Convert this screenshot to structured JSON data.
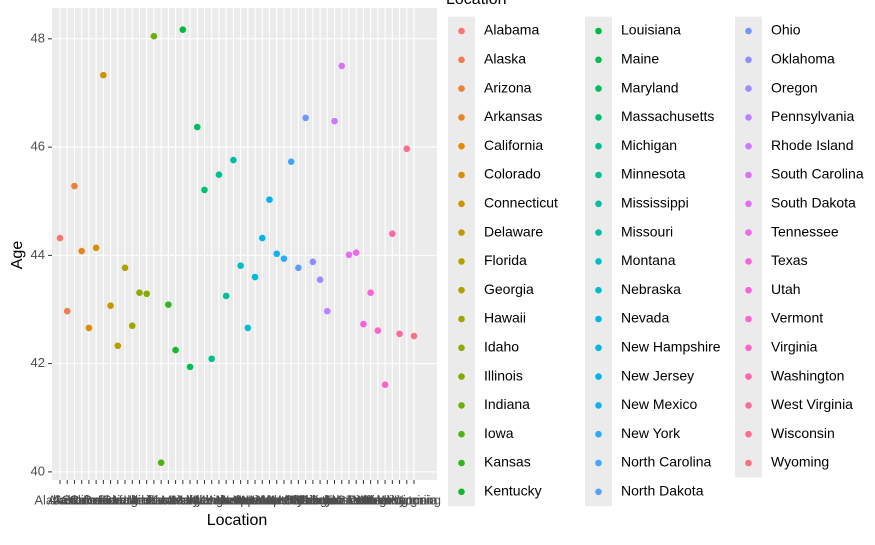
{
  "chart_data": {
    "type": "scatter",
    "x_label": "Location",
    "y_label": "Age",
    "legend_title": "Location",
    "categories": [
      "Alabama",
      "Alaska",
      "Arizona",
      "Arkansas",
      "California",
      "Colorado",
      "Connecticut",
      "Delaware",
      "Florida",
      "Georgia",
      "Hawaii",
      "Idaho",
      "Illinois",
      "Indiana",
      "Iowa",
      "Kansas",
      "Kentucky",
      "Louisiana",
      "Maine",
      "Maryland",
      "Massachusetts",
      "Michigan",
      "Minnesota",
      "Mississippi",
      "Missouri",
      "Montana",
      "Nebraska",
      "Nevada",
      "New Hampshire",
      "New Jersey",
      "New Mexico",
      "New York",
      "North Carolina",
      "North Dakota",
      "Ohio",
      "Oklahoma",
      "Oregon",
      "Pennsylvania",
      "Rhode Island",
      "South Carolina",
      "South Dakota",
      "Tennessee",
      "Texas",
      "Utah",
      "Vermont",
      "Virginia",
      "Washington",
      "West Virginia",
      "Wisconsin",
      "Wyoming"
    ],
    "values": [
      44.32,
      42.97,
      45.28,
      44.08,
      42.66,
      44.14,
      47.33,
      43.07,
      42.33,
      43.77,
      42.7,
      43.31,
      43.29,
      48.05,
      40.17,
      43.09,
      42.25,
      48.17,
      41.94,
      46.37,
      45.21,
      42.09,
      45.49,
      43.25,
      45.76,
      43.81,
      42.66,
      43.6,
      44.32,
      45.03,
      44.03,
      43.94,
      45.73,
      43.77,
      46.54,
      43.88,
      43.55,
      42.97,
      46.48,
      47.5,
      44.01,
      44.05,
      42.73,
      43.31,
      42.61,
      41.61,
      44.4,
      42.55,
      45.97,
      42.51
    ],
    "colors": [
      "#F8766D",
      "#F27B53",
      "#EC8139",
      "#E5861F",
      "#DF8B04",
      "#D69000",
      "#CD9400",
      "#C49900",
      "#BA9D00",
      "#AEA100",
      "#9FA500",
      "#91A800",
      "#83AC00",
      "#6DAF07",
      "#4FB214",
      "#32B522",
      "#14B82F",
      "#00BA3F",
      "#00BC51",
      "#00BD62",
      "#00BF73",
      "#00C08D",
      "#00C095",
      "#00BF9D",
      "#00BFA6",
      "#00BFC4",
      "#00BCCE",
      "#00BAD9",
      "#00B7E3",
      "#00B4EE",
      "#13AFF3",
      "#2BAAF6",
      "#42A5FA",
      "#599EFE",
      "#7197FF",
      "#8A90FF",
      "#A289FF",
      "#BB81FF",
      "#CD79FC",
      "#D874F6",
      "#E36EF0",
      "#EE68E9",
      "#F664E0",
      "#F864D8",
      "#FB64D1",
      "#FD64C9",
      "#FF65AD",
      "#FD689D",
      "#FB6D8E",
      "#F9727E"
    ],
    "ylim": [
      39.85,
      48.57
    ],
    "yticks": [
      40,
      42,
      44,
      46,
      48
    ],
    "grid": true,
    "legend_position": "right"
  }
}
